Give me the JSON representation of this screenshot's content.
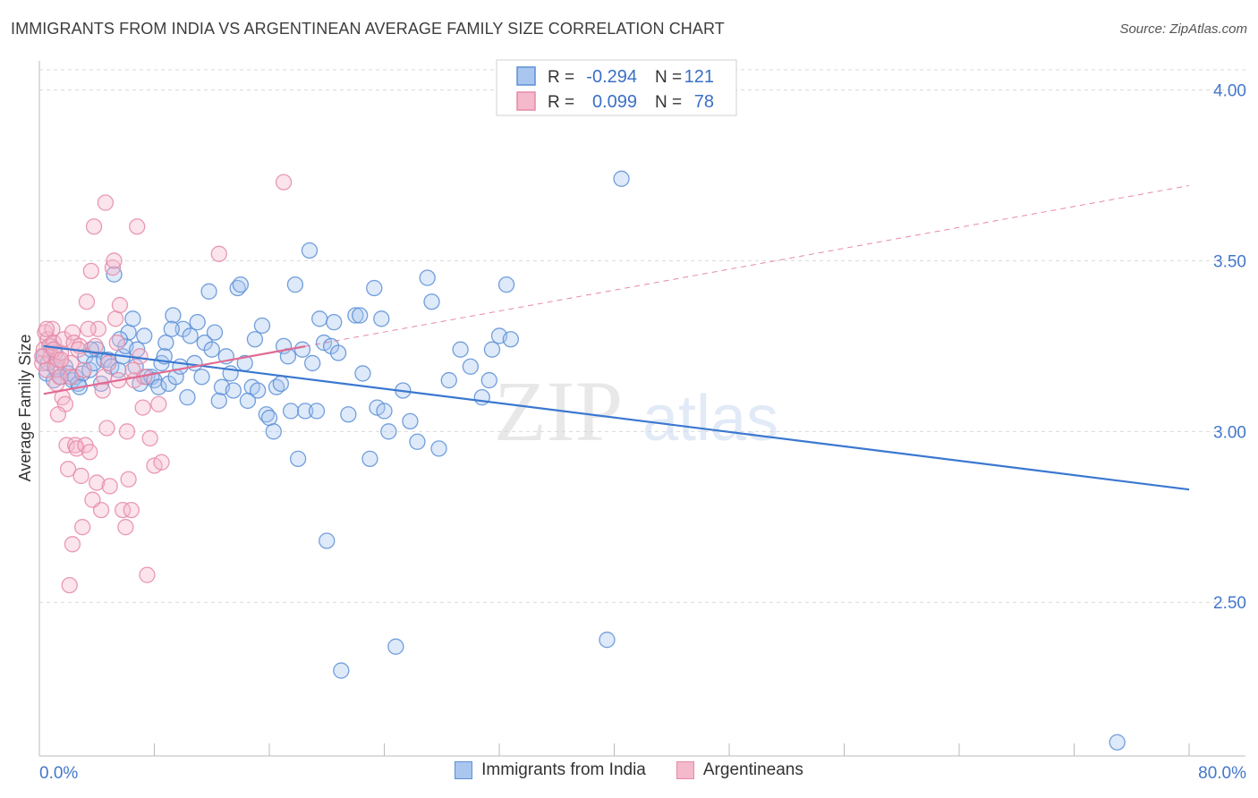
{
  "header": {
    "title": "IMMIGRANTS FROM INDIA VS ARGENTINEAN AVERAGE FAMILY SIZE CORRELATION CHART",
    "source": "Source: ZipAtlas.com"
  },
  "watermark": {
    "zip": "ZIP",
    "atlas": "atlas"
  },
  "stats_legend": {
    "rows": [
      {
        "r_label": "R =",
        "r_value": "-0.294",
        "n_label": "N =",
        "n_value": "121"
      },
      {
        "r_label": "R =",
        "r_value": "0.099",
        "n_label": "N =",
        "n_value": "78"
      }
    ]
  },
  "colors": {
    "blue": "#5b8fd6",
    "blue_fill": "#a9c6ee",
    "blue_line": "#3a78d0",
    "pink": "#e58aa6",
    "pink_fill": "#f5b9cc",
    "pink_line": "#e06b93",
    "axis_text": "#4477cc",
    "grid": "#d9d9d9"
  },
  "chart_data": {
    "type": "scatter",
    "title": "IMMIGRANTS FROM INDIA VS ARGENTINEAN AVERAGE FAMILY SIZE CORRELATION CHART",
    "xlabel": "",
    "ylabel": "Average Family Size",
    "xlim": [
      0,
      80
    ],
    "ylim": [
      2.05,
      4.08
    ],
    "x_tick_labels": [
      "0.0%",
      "80.0%"
    ],
    "y_ticks": [
      2.5,
      3.0,
      3.5,
      4.0
    ],
    "y_tick_labels": [
      "2.50",
      "3.00",
      "3.50",
      "4.00"
    ],
    "grid": true,
    "legend_position": "bottom",
    "series": [
      {
        "name": "Immigrants from India",
        "color": "#5b8fd6",
        "r": -0.294,
        "n": 121,
        "trend": {
          "x": [
            0.3,
            80
          ],
          "y": [
            3.25,
            2.83
          ],
          "dashed_until": null
        },
        "points": [
          [
            0.3,
            3.22
          ],
          [
            0.5,
            3.17
          ],
          [
            0.8,
            3.25
          ],
          [
            1.0,
            3.15
          ],
          [
            1.2,
            3.18
          ],
          [
            1.5,
            3.16
          ],
          [
            1.8,
            3.19
          ],
          [
            2.0,
            3.17
          ],
          [
            2.3,
            3.15
          ],
          [
            2.5,
            3.16
          ],
          [
            2.7,
            3.14
          ],
          [
            3.0,
            3.17
          ],
          [
            3.2,
            3.22
          ],
          [
            3.5,
            3.18
          ],
          [
            3.8,
            3.2
          ],
          [
            4.0,
            3.24
          ],
          [
            4.3,
            3.14
          ],
          [
            4.5,
            3.21
          ],
          [
            4.8,
            3.21
          ],
          [
            5.0,
            3.19
          ],
          [
            5.2,
            3.46
          ],
          [
            5.5,
            3.18
          ],
          [
            5.8,
            3.22
          ],
          [
            6.0,
            3.25
          ],
          [
            6.2,
            3.29
          ],
          [
            6.5,
            3.33
          ],
          [
            6.8,
            3.24
          ],
          [
            7.0,
            3.14
          ],
          [
            7.3,
            3.28
          ],
          [
            7.5,
            3.16
          ],
          [
            7.8,
            3.16
          ],
          [
            8.0,
            3.15
          ],
          [
            8.3,
            3.13
          ],
          [
            8.5,
            3.2
          ],
          [
            8.8,
            3.26
          ],
          [
            9.0,
            3.14
          ],
          [
            9.3,
            3.34
          ],
          [
            9.5,
            3.16
          ],
          [
            9.8,
            3.19
          ],
          [
            10.0,
            3.3
          ],
          [
            10.3,
            3.1
          ],
          [
            10.5,
            3.28
          ],
          [
            10.8,
            3.2
          ],
          [
            11.0,
            3.32
          ],
          [
            11.3,
            3.16
          ],
          [
            11.5,
            3.26
          ],
          [
            11.8,
            3.41
          ],
          [
            12.0,
            3.24
          ],
          [
            12.2,
            3.29
          ],
          [
            12.5,
            3.09
          ],
          [
            12.7,
            3.13
          ],
          [
            13.0,
            3.22
          ],
          [
            13.3,
            3.17
          ],
          [
            13.5,
            3.12
          ],
          [
            13.8,
            3.42
          ],
          [
            14.0,
            3.43
          ],
          [
            14.3,
            3.2
          ],
          [
            14.5,
            3.09
          ],
          [
            14.8,
            3.13
          ],
          [
            15.0,
            3.27
          ],
          [
            15.2,
            3.12
          ],
          [
            15.5,
            3.31
          ],
          [
            15.8,
            3.05
          ],
          [
            16.0,
            3.04
          ],
          [
            16.3,
            3.0
          ],
          [
            16.5,
            3.13
          ],
          [
            16.8,
            3.14
          ],
          [
            17.0,
            3.25
          ],
          [
            17.3,
            3.22
          ],
          [
            17.5,
            3.06
          ],
          [
            17.8,
            3.43
          ],
          [
            18.0,
            2.92
          ],
          [
            18.3,
            3.24
          ],
          [
            18.5,
            3.06
          ],
          [
            18.8,
            3.53
          ],
          [
            19.0,
            3.2
          ],
          [
            19.3,
            3.06
          ],
          [
            19.5,
            3.33
          ],
          [
            19.8,
            3.26
          ],
          [
            20.0,
            2.68
          ],
          [
            20.3,
            3.25
          ],
          [
            20.5,
            3.32
          ],
          [
            20.8,
            3.23
          ],
          [
            21.0,
            2.3
          ],
          [
            21.5,
            3.05
          ],
          [
            22.0,
            3.34
          ],
          [
            22.3,
            3.34
          ],
          [
            22.5,
            3.17
          ],
          [
            23.0,
            2.92
          ],
          [
            23.3,
            3.42
          ],
          [
            23.5,
            3.07
          ],
          [
            23.8,
            3.33
          ],
          [
            24.0,
            3.06
          ],
          [
            24.3,
            3.0
          ],
          [
            24.8,
            2.37
          ],
          [
            25.3,
            3.12
          ],
          [
            25.8,
            3.03
          ],
          [
            26.3,
            2.97
          ],
          [
            27.0,
            3.45
          ],
          [
            27.3,
            3.38
          ],
          [
            27.8,
            2.95
          ],
          [
            28.5,
            3.15
          ],
          [
            29.3,
            3.24
          ],
          [
            30.0,
            3.19
          ],
          [
            30.8,
            3.1
          ],
          [
            31.3,
            3.15
          ],
          [
            31.5,
            3.24
          ],
          [
            32.0,
            3.28
          ],
          [
            32.5,
            3.43
          ],
          [
            32.8,
            3.27
          ],
          [
            39.5,
            2.39
          ],
          [
            40.5,
            3.74
          ],
          [
            75.0,
            2.09
          ],
          [
            0.6,
            3.2
          ],
          [
            1.1,
            3.23
          ],
          [
            2.8,
            3.13
          ],
          [
            3.6,
            3.24
          ],
          [
            5.6,
            3.27
          ],
          [
            6.7,
            3.19
          ],
          [
            8.7,
            3.22
          ],
          [
            9.2,
            3.3
          ]
        ]
      },
      {
        "name": "Argentineans",
        "color": "#e58aa6",
        "r": 0.099,
        "n": 78,
        "trend": {
          "x": [
            0.3,
            80
          ],
          "y": [
            3.11,
            3.72
          ],
          "solid_until_x": 18.5
        },
        "points": [
          [
            0.2,
            3.2
          ],
          [
            0.3,
            3.24
          ],
          [
            0.4,
            3.29
          ],
          [
            0.5,
            3.18
          ],
          [
            0.6,
            3.27
          ],
          [
            0.7,
            3.25
          ],
          [
            0.8,
            3.22
          ],
          [
            0.9,
            3.3
          ],
          [
            1.0,
            3.26
          ],
          [
            1.1,
            3.19
          ],
          [
            1.2,
            3.14
          ],
          [
            1.3,
            3.21
          ],
          [
            1.4,
            3.16
          ],
          [
            1.5,
            3.23
          ],
          [
            1.6,
            3.1
          ],
          [
            1.7,
            3.27
          ],
          [
            1.8,
            3.08
          ],
          [
            1.9,
            2.96
          ],
          [
            2.0,
            2.89
          ],
          [
            2.1,
            2.55
          ],
          [
            2.2,
            3.2
          ],
          [
            2.3,
            3.29
          ],
          [
            2.4,
            3.26
          ],
          [
            2.5,
            2.96
          ],
          [
            2.6,
            2.95
          ],
          [
            2.8,
            3.25
          ],
          [
            2.9,
            2.87
          ],
          [
            3.0,
            2.72
          ],
          [
            3.2,
            2.96
          ],
          [
            3.3,
            3.38
          ],
          [
            3.5,
            2.94
          ],
          [
            3.6,
            3.47
          ],
          [
            3.8,
            3.6
          ],
          [
            4.0,
            2.85
          ],
          [
            4.1,
            3.3
          ],
          [
            4.3,
            2.77
          ],
          [
            4.5,
            3.16
          ],
          [
            4.6,
            3.67
          ],
          [
            4.7,
            3.01
          ],
          [
            4.9,
            2.84
          ],
          [
            5.1,
            3.48
          ],
          [
            5.2,
            3.5
          ],
          [
            5.3,
            3.33
          ],
          [
            5.5,
            3.15
          ],
          [
            5.6,
            3.37
          ],
          [
            5.8,
            2.77
          ],
          [
            6.0,
            2.72
          ],
          [
            6.1,
            3.0
          ],
          [
            6.2,
            2.86
          ],
          [
            6.4,
            2.77
          ],
          [
            6.6,
            3.15
          ],
          [
            6.8,
            3.6
          ],
          [
            7.0,
            3.22
          ],
          [
            7.2,
            3.07
          ],
          [
            7.5,
            2.58
          ],
          [
            7.7,
            2.98
          ],
          [
            8.0,
            2.9
          ],
          [
            8.3,
            3.08
          ],
          [
            8.5,
            2.91
          ],
          [
            12.5,
            3.52
          ],
          [
            17.0,
            3.73
          ],
          [
            0.2,
            3.22
          ],
          [
            0.5,
            3.3
          ],
          [
            1.0,
            3.24
          ],
          [
            1.5,
            3.21
          ],
          [
            2.2,
            3.16
          ],
          [
            2.7,
            3.24
          ],
          [
            3.1,
            3.18
          ],
          [
            3.4,
            3.3
          ],
          [
            3.9,
            3.25
          ],
          [
            4.4,
            3.12
          ],
          [
            4.8,
            3.2
          ],
          [
            5.4,
            3.26
          ],
          [
            6.5,
            3.18
          ],
          [
            7.3,
            3.16
          ],
          [
            1.3,
            3.05
          ],
          [
            2.3,
            2.67
          ],
          [
            3.7,
            2.8
          ]
        ]
      }
    ]
  }
}
